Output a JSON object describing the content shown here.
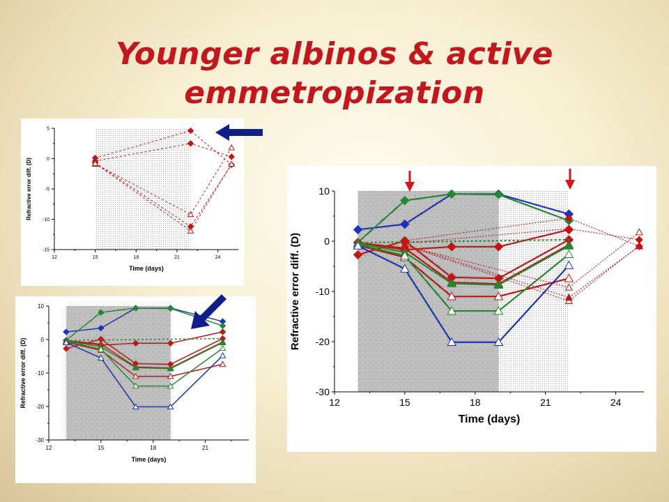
{
  "title_line1": "Younger albinos & active",
  "title_line2": "emmetropization",
  "chart_data": [
    {
      "type": "line",
      "xlabel": "Time (days)",
      "ylabel": "Refractive error diff. (D)",
      "xlim": [
        12,
        25.5
      ],
      "ylim": [
        -15,
        5
      ],
      "xticks": [
        12,
        15,
        18,
        21,
        24
      ],
      "yticks": [
        5,
        0,
        -5,
        -10,
        -15
      ],
      "shaded_x": [
        15,
        22
      ],
      "series": [
        {
          "marker": "diamond",
          "filled": true,
          "color": "#cc1010",
          "dashed": true,
          "x": [
            15,
            22,
            25
          ],
          "y": [
            0.1,
            4.6,
            -1.0
          ]
        },
        {
          "marker": "diamond",
          "filled": true,
          "color": "#cc1010",
          "dashed": true,
          "x": [
            15,
            22,
            25
          ],
          "y": [
            -0.4,
            2.5,
            0.3
          ]
        },
        {
          "marker": "diamond",
          "filled": true,
          "color": "#cc1010",
          "dashed": true,
          "x": [
            15,
            22,
            25
          ],
          "y": [
            -0.7,
            -11.2,
            -1.0
          ]
        },
        {
          "marker": "triangle",
          "filled": false,
          "color": "#cc1010",
          "dashed": true,
          "x": [
            15,
            22,
            25
          ],
          "y": [
            -0.9,
            -9.2,
            1.8
          ]
        },
        {
          "marker": "triangle",
          "filled": false,
          "color": "#cc1010",
          "dashed": true,
          "x": [
            15,
            22,
            25
          ],
          "y": [
            -0.8,
            -11.9,
            -0.9
          ]
        }
      ]
    },
    {
      "type": "line",
      "xlabel": "Time (days)",
      "ylabel": "Refractive error diff. (D)",
      "xlim": [
        12,
        23.5
      ],
      "ylim": [
        -30,
        10
      ],
      "xticks": [
        12,
        15,
        18,
        21
      ],
      "yticks": [
        10,
        0,
        -10,
        -20,
        -30
      ],
      "shaded_x": [
        13,
        19
      ],
      "series": [
        {
          "marker": "diamond",
          "filled": true,
          "color": "#1a2fcf",
          "x": [
            13,
            15,
            17,
            19,
            22
          ],
          "y": [
            2.3,
            3.4,
            9.4,
            9.4,
            5.4
          ]
        },
        {
          "marker": "diamond",
          "filled": true,
          "color": "#1e8a2e",
          "x": [
            13,
            15,
            17,
            19,
            22
          ],
          "y": [
            -0.2,
            8.1,
            9.4,
            9.3,
            4.1
          ]
        },
        {
          "marker": "diamond",
          "filled": true,
          "color": "#cc1010",
          "x": [
            13,
            15,
            17,
            19,
            22
          ],
          "y": [
            -0.3,
            -1.7,
            -1.1,
            -1.1,
            2.3
          ]
        },
        {
          "marker": "diamond",
          "filled": true,
          "color": "#cc1010",
          "x": [
            13,
            15,
            17,
            19,
            22
          ],
          "y": [
            -2.7,
            0.1,
            -7.2,
            -7.4,
            0.3
          ]
        },
        {
          "marker": "triangle",
          "filled": true,
          "color": "#cc1010",
          "x": [
            13,
            15,
            17,
            19,
            22
          ],
          "y": [
            -0.3,
            -1.4,
            -8.2,
            -8.5,
            -0.7
          ]
        },
        {
          "marker": "triangle",
          "filled": true,
          "color": "#1e8a2e",
          "x": [
            13,
            15,
            17,
            19,
            22
          ],
          "y": [
            -0.4,
            -2.2,
            -8.4,
            -8.7,
            -0.9
          ]
        },
        {
          "marker": "triangle",
          "filled": false,
          "color": "#cc1010",
          "x": [
            13,
            15,
            17,
            19,
            22
          ],
          "y": [
            -0.8,
            -3.2,
            -11.0,
            -11.0,
            -7.4
          ]
        },
        {
          "marker": "triangle",
          "filled": false,
          "color": "#1e8a2e",
          "x": [
            13,
            15,
            17,
            19,
            22
          ],
          "y": [
            -0.6,
            -2.9,
            -13.9,
            -13.9,
            -2.6
          ]
        },
        {
          "marker": "triangle",
          "filled": false,
          "color": "#1a2fcf",
          "x": [
            13,
            15,
            17,
            19,
            22
          ],
          "y": [
            -0.9,
            -5.5,
            -20.1,
            -20.1,
            -4.8
          ]
        },
        {
          "marker": "none",
          "filled": false,
          "color": "#1e8a2e",
          "dashed": true,
          "x": [
            13,
            22
          ],
          "y": [
            -0.3,
            0.3
          ]
        }
      ]
    },
    {
      "type": "line",
      "xlabel": "Time (days)",
      "ylabel": "Refractive error diff. (D)",
      "xlim": [
        12,
        25.2
      ],
      "ylim": [
        -30,
        10
      ],
      "xticks": [
        12,
        15,
        18,
        21,
        24
      ],
      "yticks": [
        10,
        0,
        -10,
        -20,
        -30
      ],
      "shaded_x": [
        13,
        22
      ],
      "dark_shaded_x": [
        13,
        19
      ],
      "series": [
        {
          "marker": "diamond",
          "filled": true,
          "color": "#1a2fcf",
          "x": [
            13,
            15,
            17,
            19,
            22
          ],
          "y": [
            2.3,
            3.4,
            9.4,
            9.4,
            5.4
          ]
        },
        {
          "marker": "diamond",
          "filled": true,
          "color": "#1e8a2e",
          "x": [
            13,
            15,
            17,
            19,
            22
          ],
          "y": [
            -0.2,
            8.1,
            9.4,
            9.3,
            4.1
          ]
        },
        {
          "marker": "diamond",
          "filled": true,
          "color": "#cc1010",
          "x": [
            13,
            15,
            17,
            19,
            22
          ],
          "y": [
            -0.3,
            -1.7,
            -1.1,
            -1.1,
            2.3
          ]
        },
        {
          "marker": "diamond",
          "filled": true,
          "color": "#cc1010",
          "x": [
            13,
            15,
            17,
            19,
            22
          ],
          "y": [
            -2.7,
            0.1,
            -7.2,
            -7.4,
            0.3
          ]
        },
        {
          "marker": "triangle",
          "filled": true,
          "color": "#cc1010",
          "x": [
            13,
            15,
            17,
            19,
            22
          ],
          "y": [
            -0.3,
            -1.4,
            -8.2,
            -8.5,
            -0.7
          ]
        },
        {
          "marker": "triangle",
          "filled": true,
          "color": "#1e8a2e",
          "x": [
            13,
            15,
            17,
            19,
            22
          ],
          "y": [
            -0.4,
            -2.2,
            -8.4,
            -8.7,
            -0.9
          ]
        },
        {
          "marker": "triangle",
          "filled": false,
          "color": "#cc1010",
          "x": [
            13,
            15,
            17,
            19,
            22
          ],
          "y": [
            -0.8,
            -3.2,
            -11.0,
            -11.0,
            -7.4
          ]
        },
        {
          "marker": "triangle",
          "filled": false,
          "color": "#1e8a2e",
          "x": [
            13,
            15,
            17,
            19,
            22
          ],
          "y": [
            -0.6,
            -2.9,
            -13.9,
            -13.9,
            -2.6
          ]
        },
        {
          "marker": "triangle",
          "filled": false,
          "color": "#1a2fcf",
          "x": [
            13,
            15,
            17,
            19,
            22
          ],
          "y": [
            -0.9,
            -5.5,
            -20.1,
            -20.1,
            -4.8
          ]
        },
        {
          "marker": "none",
          "filled": false,
          "color": "#1e8a2e",
          "dashed": true,
          "x": [
            13,
            22
          ],
          "y": [
            -0.3,
            0.3
          ]
        },
        {
          "marker": "diamond",
          "filled": true,
          "color": "#cc1010",
          "dashed": true,
          "thin": true,
          "x": [
            15,
            22,
            25
          ],
          "y": [
            0.1,
            4.6,
            -1.0
          ]
        },
        {
          "marker": "diamond",
          "filled": true,
          "color": "#cc1010",
          "dashed": true,
          "thin": true,
          "x": [
            15,
            22,
            25
          ],
          "y": [
            -0.4,
            2.5,
            0.3
          ]
        },
        {
          "marker": "triangle",
          "filled": false,
          "color": "#cc1010",
          "dashed": true,
          "thin": true,
          "x": [
            15,
            22,
            25
          ],
          "y": [
            -0.9,
            -9.2,
            1.8
          ]
        },
        {
          "marker": "triangle",
          "filled": false,
          "color": "#cc1010",
          "dashed": true,
          "thin": true,
          "x": [
            15,
            22,
            25
          ],
          "y": [
            -0.8,
            -11.9,
            -0.9
          ]
        },
        {
          "marker": "triangle",
          "filled": true,
          "color": "#cc1010",
          "dashed": true,
          "thin": true,
          "x": [
            15,
            22,
            25
          ],
          "y": [
            -0.7,
            -11.2,
            -1.0
          ]
        }
      ]
    }
  ]
}
